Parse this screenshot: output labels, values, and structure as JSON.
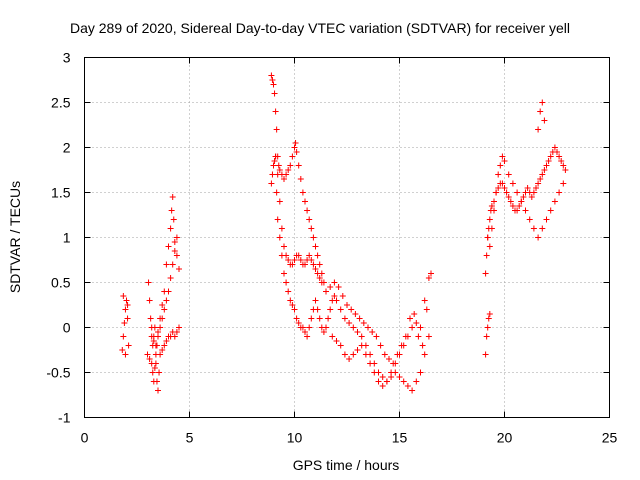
{
  "chart_data": {
    "type": "scatter",
    "title": "Day 289 of 2020, Sidereal Day-to-day VTEC variation (SDTVAR) for receiver yell",
    "xlabel": "GPS time / hours",
    "ylabel": "SDTVAR / TECUs",
    "xlim": [
      0,
      25
    ],
    "ylim": [
      -1,
      3
    ],
    "xticks": [
      "0",
      "5",
      "10",
      "15",
      "20",
      "25"
    ],
    "yticks": [
      "-1",
      "-0.5",
      "0",
      "0.5",
      "1",
      "1.5",
      "2",
      "2.5",
      "3"
    ],
    "grid": true,
    "marker": "plus",
    "color": "#ff0000",
    "series": [
      {
        "name": "SDTVAR",
        "x": [
          1.8,
          1.85,
          1.9,
          1.95,
          2.0,
          2.05,
          2.1,
          1.85,
          1.95,
          2.05,
          3.0,
          3.1,
          3.2,
          3.25,
          3.3,
          3.35,
          3.4,
          3.45,
          3.5,
          3.6,
          3.7,
          3.8,
          3.9,
          4.0,
          4.1,
          4.2,
          4.3,
          4.4,
          3.2,
          3.3,
          3.4,
          3.5,
          3.6,
          3.7,
          3.8,
          3.9,
          4.0,
          4.1,
          4.15,
          4.2,
          4.25,
          4.3,
          4.4,
          4.5,
          3.05,
          3.1,
          3.15,
          3.2,
          3.25,
          3.3,
          3.35,
          3.4,
          3.45,
          3.5,
          3.55,
          3.6,
          3.7,
          3.8,
          3.9,
          4.0,
          4.1,
          4.2,
          4.3,
          4.4,
          4.5,
          8.9,
          8.95,
          9.0,
          9.05,
          9.1,
          9.15,
          9.2,
          9.25,
          9.3,
          9.4,
          9.5,
          9.6,
          9.7,
          9.8,
          9.9,
          10.0,
          10.05,
          10.1,
          10.2,
          10.3,
          10.4,
          10.5,
          10.6,
          10.7,
          10.8,
          10.9,
          11.0,
          11.1,
          11.2,
          11.3,
          11.4,
          9.1,
          9.2,
          9.3,
          9.4,
          9.5,
          9.6,
          9.7,
          9.8,
          9.9,
          10.0,
          10.1,
          10.2,
          10.3,
          10.4,
          10.5,
          10.6,
          10.7,
          10.8,
          10.9,
          11.0,
          11.1,
          11.2,
          11.3,
          8.9,
          8.95,
          9.0,
          9.05,
          9.1,
          9.15,
          9.2,
          9.3,
          9.4,
          9.5,
          9.6,
          9.7,
          9.8,
          9.9,
          10.0,
          10.1,
          10.2,
          10.3,
          10.4,
          10.5,
          10.6,
          10.7,
          10.8,
          10.9,
          11.0,
          11.1,
          11.2,
          11.3,
          11.4,
          11.5,
          11.6,
          11.7,
          11.8,
          11.9,
          12.0,
          12.2,
          12.4,
          12.6,
          12.8,
          13.0,
          13.2,
          13.4,
          13.6,
          13.8,
          14.0,
          14.2,
          14.4,
          14.6,
          14.8,
          15.0,
          15.2,
          15.4,
          15.6,
          15.8,
          16.0,
          16.2,
          16.4,
          11.5,
          11.7,
          11.9,
          12.1,
          12.3,
          12.5,
          12.7,
          12.9,
          13.1,
          13.3,
          13.5,
          13.7,
          13.9,
          14.1,
          14.3,
          14.5,
          14.7,
          14.9,
          15.1,
          15.3,
          15.5,
          15.7,
          15.9,
          16.1,
          16.3,
          16.5,
          11.8,
          12.0,
          12.2,
          12.4,
          12.6,
          12.8,
          13.0,
          13.2,
          13.4,
          13.6,
          13.8,
          14.0,
          14.2,
          14.4,
          14.6,
          14.8,
          15.0,
          15.2,
          15.4,
          15.6,
          15.8,
          16.0,
          16.2,
          16.4,
          19.1,
          19.15,
          19.2,
          19.25,
          19.3,
          19.35,
          19.4,
          19.5,
          19.6,
          19.7,
          19.8,
          19.9,
          20.0,
          20.1,
          20.2,
          20.3,
          20.4,
          20.5,
          20.6,
          20.7,
          20.8,
          20.9,
          21.0,
          21.1,
          21.2,
          21.3,
          21.4,
          21.5,
          21.6,
          21.7,
          21.8,
          21.9,
          22.0,
          22.1,
          22.2,
          22.3,
          22.4,
          22.5,
          22.6,
          22.7,
          22.8,
          22.9,
          19.2,
          19.3,
          19.4,
          19.5,
          19.6,
          19.7,
          19.8,
          19.9,
          20.0,
          20.2,
          20.4,
          20.6,
          20.8,
          21.0,
          21.2,
          21.4,
          21.6,
          21.8,
          22.0,
          22.2,
          22.4,
          22.6,
          22.8,
          19.1,
          19.15,
          19.2,
          19.25,
          19.3,
          21.6,
          21.7,
          21.8,
          21.9
        ],
        "y": [
          -0.25,
          -0.1,
          0.05,
          0.2,
          0.3,
          0.1,
          -0.2,
          0.35,
          -0.3,
          0.25,
          -0.3,
          -0.35,
          -0.4,
          -0.5,
          -0.6,
          -0.45,
          -0.3,
          -0.2,
          -0.1,
          0.0,
          0.1,
          0.2,
          0.3,
          0.4,
          0.55,
          0.7,
          0.85,
          1.0,
          0.0,
          -0.1,
          -0.2,
          -0.05,
          0.1,
          0.25,
          0.4,
          0.7,
          0.9,
          1.1,
          1.3,
          1.45,
          1.2,
          0.95,
          0.8,
          0.65,
          0.5,
          0.3,
          0.1,
          -0.1,
          -0.2,
          -0.15,
          0.0,
          -0.4,
          -0.6,
          -0.7,
          -0.5,
          -0.3,
          -0.25,
          -0.2,
          -0.15,
          -0.1,
          -0.1,
          -0.05,
          -0.1,
          -0.05,
          0.0,
          2.8,
          2.75,
          2.7,
          2.6,
          2.4,
          2.2,
          1.9,
          1.8,
          1.75,
          1.7,
          1.65,
          1.7,
          1.75,
          1.8,
          1.9,
          2.0,
          2.05,
          1.95,
          1.8,
          1.65,
          1.5,
          1.4,
          1.3,
          1.2,
          1.1,
          1.0,
          0.9,
          0.8,
          0.7,
          0.6,
          0.5,
          1.9,
          1.7,
          1.4,
          1.1,
          0.9,
          0.8,
          0.75,
          0.7,
          0.7,
          0.75,
          0.8,
          0.8,
          0.75,
          0.7,
          0.7,
          0.75,
          0.8,
          0.75,
          0.7,
          0.65,
          0.6,
          0.55,
          0.5,
          1.6,
          1.7,
          1.8,
          1.85,
          1.9,
          1.5,
          1.2,
          1.0,
          0.8,
          0.6,
          0.5,
          0.4,
          0.3,
          0.25,
          0.2,
          0.1,
          0.05,
          0.0,
          0.0,
          -0.05,
          -0.1,
          0.0,
          0.1,
          0.2,
          0.3,
          0.2,
          0.1,
          0.0,
          -0.05,
          0.0,
          0.1,
          0.2,
          0.3,
          0.35,
          0.3,
          0.2,
          0.1,
          0.05,
          0.0,
          -0.05,
          -0.1,
          -0.2,
          -0.3,
          -0.4,
          -0.5,
          -0.55,
          -0.6,
          -0.5,
          -0.4,
          -0.3,
          -0.2,
          -0.1,
          0.0,
          0.05,
          0.0,
          0.3,
          0.55,
          0.4,
          0.45,
          0.5,
          0.45,
          0.35,
          0.25,
          0.2,
          0.15,
          0.1,
          0.05,
          0.0,
          -0.05,
          -0.1,
          -0.2,
          -0.3,
          -0.35,
          -0.4,
          -0.3,
          -0.2,
          -0.1,
          0.1,
          0.15,
          -0.1,
          -0.2,
          0.2,
          0.6,
          -0.1,
          -0.15,
          -0.2,
          -0.3,
          -0.35,
          -0.3,
          -0.25,
          -0.2,
          -0.3,
          -0.4,
          -0.5,
          -0.6,
          -0.65,
          -0.6,
          -0.55,
          -0.5,
          -0.55,
          -0.6,
          -0.65,
          -0.7,
          -0.6,
          -0.5,
          -0.3,
          -0.1,
          0.6,
          0.8,
          1.0,
          1.1,
          1.2,
          1.3,
          1.35,
          1.4,
          1.5,
          1.55,
          1.6,
          1.6,
          1.55,
          1.5,
          1.45,
          1.4,
          1.35,
          1.3,
          1.3,
          1.35,
          1.4,
          1.45,
          1.5,
          1.55,
          1.5,
          1.45,
          1.5,
          1.55,
          1.6,
          1.65,
          1.7,
          1.75,
          1.8,
          1.85,
          1.9,
          1.95,
          2.0,
          1.95,
          1.9,
          1.85,
          1.8,
          1.75,
          1.0,
          0.9,
          1.1,
          1.3,
          1.5,
          1.7,
          1.8,
          1.9,
          1.85,
          1.7,
          1.6,
          1.5,
          1.4,
          1.3,
          1.2,
          1.1,
          1.0,
          1.1,
          1.2,
          1.3,
          1.4,
          1.5,
          1.6,
          -0.3,
          -0.1,
          0.0,
          0.1,
          0.15,
          2.2,
          2.4,
          2.5,
          2.3
        ]
      }
    ]
  }
}
